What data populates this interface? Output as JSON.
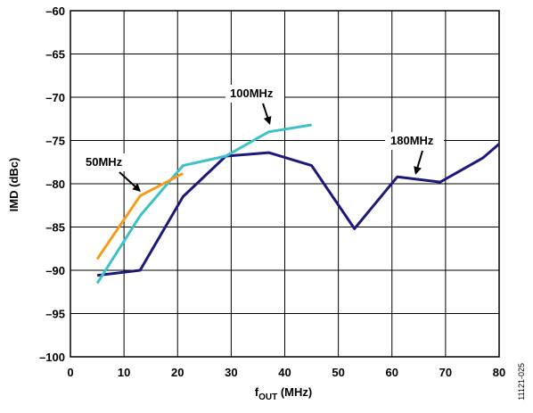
{
  "chart_data": {
    "type": "line",
    "xlabel": {
      "main": "f",
      "sub": "OUT",
      "rest": " (MHz)"
    },
    "ylabel": "IMD (dBc)",
    "xlim": [
      0,
      80
    ],
    "ylim": [
      -100,
      -60
    ],
    "x_ticks": [
      0,
      10,
      20,
      30,
      40,
      50,
      60,
      70,
      80
    ],
    "x_tick_labels": [
      "0",
      "10",
      "20",
      "30",
      "40",
      "50",
      "60",
      "70",
      "80"
    ],
    "y_ticks": [
      -60,
      -65,
      -70,
      -75,
      -80,
      -85,
      -90,
      -95,
      -100
    ],
    "y_tick_labels": [
      "–60",
      "–65",
      "–70",
      "–75",
      "–80",
      "–85",
      "–90",
      "–95",
      "–100"
    ],
    "grid": true,
    "series": [
      {
        "name": "50MHz",
        "color": "#F39C1E",
        "points": [
          [
            5,
            -88.7
          ],
          [
            13,
            -81.4
          ],
          [
            21,
            -78.8
          ]
        ]
      },
      {
        "name": "100MHz",
        "color": "#3EC1C8",
        "points": [
          [
            5,
            -91.5
          ],
          [
            13,
            -83.7
          ],
          [
            21,
            -77.9
          ],
          [
            29,
            -76.8
          ],
          [
            37,
            -74.0
          ],
          [
            45,
            -73.2
          ]
        ]
      },
      {
        "name": "180MHz",
        "color": "#1B1A7A",
        "points": [
          [
            5,
            -90.6
          ],
          [
            13,
            -90.0
          ],
          [
            21,
            -81.5
          ],
          [
            29,
            -76.8
          ],
          [
            37,
            -76.4
          ],
          [
            45,
            -77.9
          ],
          [
            53,
            -85.2
          ],
          [
            61,
            -79.2
          ],
          [
            69,
            -79.8
          ],
          [
            77,
            -77.0
          ],
          [
            80,
            -75.4
          ]
        ]
      }
    ],
    "annotations": [
      {
        "text": "50MHz",
        "series": "50MHz"
      },
      {
        "text": "100MHz",
        "series": "100MHz"
      },
      {
        "text": "180MHz",
        "series": "180MHz"
      }
    ]
  },
  "figure_id": "11121-025"
}
